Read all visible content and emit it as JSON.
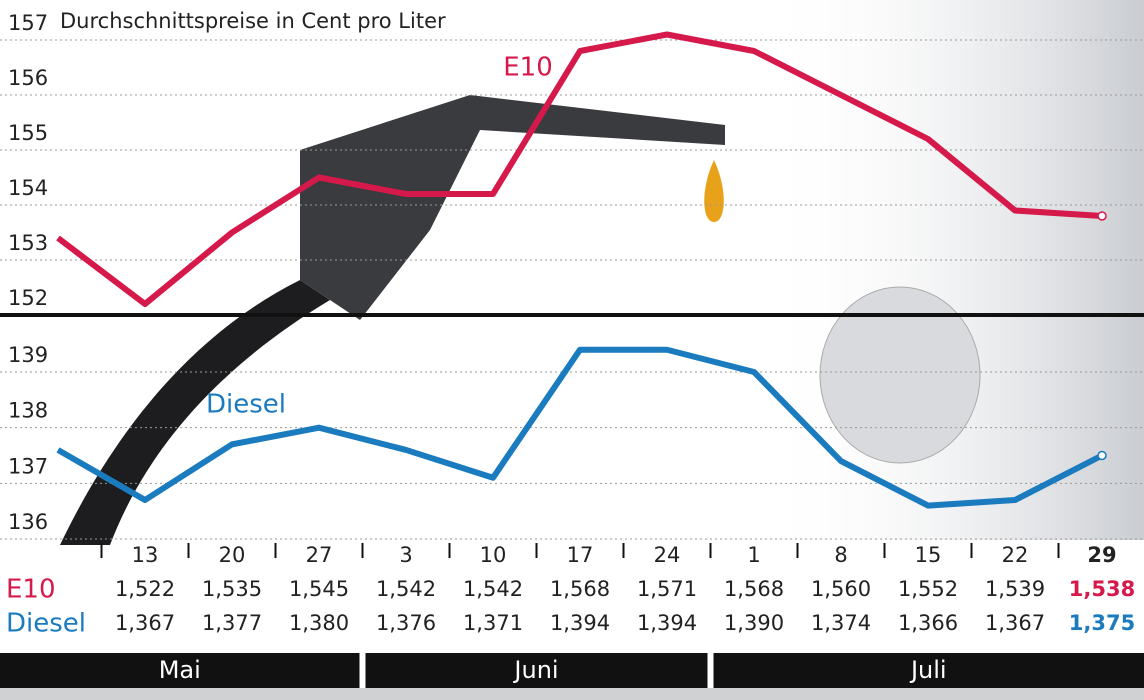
{
  "title": "Durchschnittspreise in Cent pro Liter",
  "chart_data": [
    {
      "type": "line",
      "categories": [
        null,
        "13",
        "20",
        "27",
        "3",
        "10",
        "17",
        "24",
        "1",
        "8",
        "15",
        "22",
        "29"
      ],
      "ylim": [
        152,
        157
      ],
      "yticks": [
        152,
        153,
        154,
        155,
        156,
        157
      ],
      "grid": true,
      "series": [
        {
          "name": "E10",
          "color": "#d6194b",
          "values": [
            153.4,
            152.2,
            153.5,
            154.5,
            154.2,
            154.2,
            156.8,
            157.1,
            156.8,
            156.0,
            155.2,
            153.9,
            153.8
          ],
          "value_labels": [
            null,
            "1,522",
            "1,535",
            "1,545",
            "1,542",
            "1,542",
            "1,568",
            "1,571",
            "1,568",
            "1,560",
            "1,552",
            "1,539",
            "1,538"
          ]
        }
      ]
    },
    {
      "type": "line",
      "ylim": [
        136,
        139
      ],
      "yticks": [
        136,
        137,
        138,
        139
      ],
      "grid": true,
      "series": [
        {
          "name": "Diesel",
          "color": "#1a7bbf",
          "values": [
            137.6,
            136.7,
            137.7,
            138.0,
            137.6,
            137.1,
            139.4,
            139.4,
            139.0,
            137.4,
            136.6,
            136.7,
            137.5
          ],
          "value_labels": [
            null,
            "1,367",
            "1,377",
            "1,380",
            "1,376",
            "1,371",
            "1,394",
            "1,394",
            "1,390",
            "1,374",
            "1,366",
            "1,367",
            "1,375"
          ]
        }
      ]
    }
  ],
  "months": [
    "Mai",
    "Juni",
    "Juli"
  ]
}
